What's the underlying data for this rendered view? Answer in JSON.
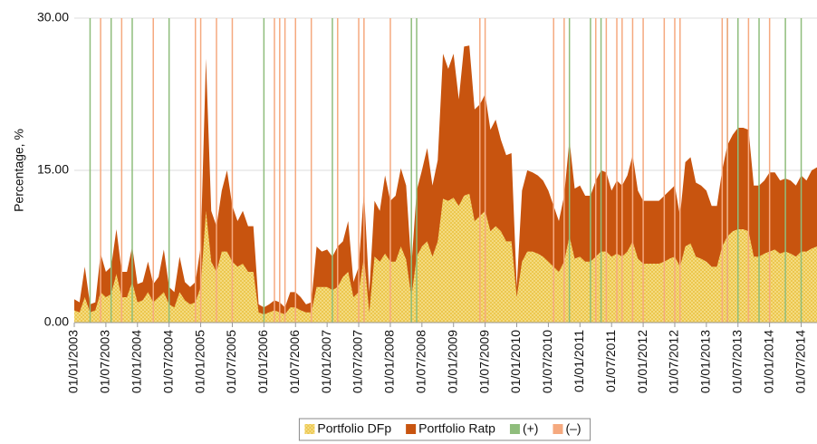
{
  "chart_data": {
    "type": "area",
    "ylabel": "Percentage, %",
    "x": [
      "01/01/2003",
      "01/02/2003",
      "01/03/2003",
      "01/04/2003",
      "01/05/2003",
      "01/06/2003",
      "01/07/2003",
      "01/08/2003",
      "01/09/2003",
      "01/10/2003",
      "01/11/2003",
      "01/12/2003",
      "01/01/2004",
      "01/02/2004",
      "01/03/2004",
      "01/04/2004",
      "01/05/2004",
      "01/06/2004",
      "01/07/2004",
      "01/08/2004",
      "01/09/2004",
      "01/10/2004",
      "01/11/2004",
      "01/12/2004",
      "01/01/2005",
      "01/02/2005",
      "01/03/2005",
      "01/04/2005",
      "01/05/2005",
      "01/06/2005",
      "01/07/2005",
      "01/08/2005",
      "01/09/2005",
      "01/10/2005",
      "01/11/2005",
      "01/12/2005",
      "01/01/2006",
      "01/02/2006",
      "01/03/2006",
      "01/04/2006",
      "01/05/2006",
      "01/06/2006",
      "01/07/2006",
      "01/08/2006",
      "01/09/2006",
      "01/10/2006",
      "01/11/2006",
      "01/12/2006",
      "01/01/2007",
      "01/02/2007",
      "01/03/2007",
      "01/04/2007",
      "01/05/2007",
      "01/06/2007",
      "01/07/2007",
      "01/08/2007",
      "01/09/2007",
      "01/10/2007",
      "01/11/2007",
      "01/12/2007",
      "01/01/2008",
      "01/02/2008",
      "01/03/2008",
      "01/04/2008",
      "01/05/2008",
      "01/06/2008",
      "01/07/2008",
      "01/08/2008",
      "01/09/2008",
      "01/10/2008",
      "01/11/2008",
      "01/12/2008",
      "01/01/2009",
      "01/02/2009",
      "01/03/2009",
      "01/04/2009",
      "01/05/2009",
      "01/06/2009",
      "01/07/2009",
      "01/08/2009",
      "01/09/2009",
      "01/10/2009",
      "01/11/2009",
      "01/12/2009",
      "01/01/2010",
      "01/02/2010",
      "01/03/2010",
      "01/04/2010",
      "01/05/2010",
      "01/06/2010",
      "01/07/2010",
      "01/08/2010",
      "01/09/2010",
      "01/10/2010",
      "01/11/2010",
      "01/12/2010",
      "01/01/2011",
      "01/02/2011",
      "01/03/2011",
      "01/04/2011",
      "01/05/2011",
      "01/06/2011",
      "01/07/2011",
      "01/08/2011",
      "01/09/2011",
      "01/10/2011",
      "01/11/2011",
      "01/12/2011",
      "01/01/2012",
      "01/02/2012",
      "01/03/2012",
      "01/04/2012",
      "01/05/2012",
      "01/06/2012",
      "01/07/2012",
      "01/08/2012",
      "01/09/2012",
      "01/10/2012",
      "01/11/2012",
      "01/12/2012",
      "01/01/2013",
      "01/02/2013",
      "01/03/2013",
      "01/04/2013",
      "01/05/2013",
      "01/06/2013",
      "01/07/2013",
      "01/08/2013",
      "01/09/2013",
      "01/10/2013",
      "01/11/2013",
      "01/12/2013",
      "01/01/2014",
      "01/02/2014",
      "01/03/2014",
      "01/04/2014",
      "01/05/2014",
      "01/06/2014",
      "01/07/2014",
      "01/08/2014",
      "01/09/2014",
      "01/10/2014"
    ],
    "series": [
      {
        "name": "Portfolio Ratp",
        "color": "#c8540f",
        "values": [
          2.3,
          2.0,
          5.5,
          1.8,
          2.0,
          6.8,
          5.0,
          5.5,
          9.2,
          5.0,
          5.0,
          7.5,
          3.8,
          4.0,
          6.0,
          3.8,
          4.5,
          7.2,
          3.5,
          3.0,
          6.5,
          4.0,
          3.5,
          4.0,
          7.5,
          26,
          11,
          9.5,
          13,
          15,
          11.5,
          10,
          11,
          9.5,
          9.5,
          1.8,
          1.5,
          1.8,
          2.2,
          2.0,
          1.5,
          3.0,
          3.0,
          2.5,
          1.8,
          2.0,
          7.5,
          7.0,
          7.2,
          6.5,
          7.5,
          8.0,
          10,
          4.0,
          5.5,
          13,
          3.0,
          12,
          11,
          14.5,
          12,
          12.5,
          15.2,
          13.5,
          5.5,
          13,
          15,
          17.2,
          13.5,
          16,
          26.5,
          25,
          26.5,
          22,
          27.2,
          27.3,
          21,
          21.5,
          22.5,
          19,
          20,
          18,
          16.5,
          16.7,
          3.5,
          13,
          15,
          14.8,
          14.5,
          14,
          13,
          11.5,
          10,
          12.5,
          18,
          13.2,
          13.5,
          12.5,
          12.5,
          14,
          15,
          14.8,
          13,
          14,
          13.5,
          14.5,
          16.5,
          13,
          12,
          12,
          12,
          12,
          12.5,
          13,
          13.5,
          10.5,
          15.8,
          16.3,
          13.8,
          13.5,
          13,
          11.5,
          11.5,
          15,
          17.5,
          18.5,
          19.2,
          19.2,
          19,
          13.5,
          13.5,
          14,
          14.8,
          14.8,
          14,
          14.2,
          14,
          13.5,
          14.5,
          14,
          15,
          15.3
        ]
      },
      {
        "name": "Portfolio DFp",
        "color": "#f3d36a",
        "values": [
          1.2,
          1.0,
          2.5,
          1.0,
          1.2,
          3.0,
          2.5,
          2.8,
          4.8,
          2.5,
          2.5,
          4.0,
          2.0,
          2.2,
          3.0,
          2.0,
          2.5,
          3.0,
          1.8,
          1.5,
          3.0,
          2.2,
          1.8,
          2.0,
          3.5,
          11,
          6,
          5,
          7,
          7,
          6,
          5.5,
          5.8,
          5,
          5,
          1.0,
          0.8,
          1.0,
          1.2,
          1.0,
          0.8,
          1.5,
          1.5,
          1.2,
          1.0,
          1.0,
          3.5,
          3.5,
          3.5,
          3.2,
          3.5,
          4.5,
          5,
          2.5,
          3,
          6.5,
          1,
          6.5,
          6,
          6.8,
          6,
          6,
          7.5,
          6.2,
          2.5,
          6.5,
          7.5,
          8,
          6.5,
          8,
          12.2,
          12,
          12.3,
          11.5,
          12.5,
          12.7,
          10,
          10.5,
          11,
          9,
          9.5,
          9,
          8,
          8,
          2.5,
          6,
          7,
          7,
          6.8,
          6.5,
          6,
          5.5,
          5,
          6,
          8.5,
          6.3,
          6.5,
          6,
          6,
          6.5,
          7,
          7,
          6.5,
          6.8,
          6.5,
          7,
          8,
          6.3,
          5.8,
          5.8,
          5.8,
          5.8,
          6,
          6.3,
          6.5,
          5.5,
          7.5,
          7.8,
          6.5,
          6.3,
          6,
          5.5,
          5.5,
          7.5,
          8.5,
          9,
          9.2,
          9.2,
          9,
          6.5,
          6.5,
          6.8,
          7,
          7.2,
          6.8,
          7,
          6.8,
          6.5,
          7,
          7,
          7.3,
          7.5
        ]
      }
    ],
    "events": [
      {
        "name": "(+)",
        "color": "#8fbd7c",
        "x": [
          "01/04/2003",
          "01/08/2003",
          "01/12/2003",
          "01/07/2004",
          "01/01/2006",
          "01/02/2007",
          "01/05/2008",
          "01/06/2008",
          "01/11/2010",
          "01/03/2011",
          "01/05/2011",
          "01/05/2013",
          "01/07/2013",
          "01/11/2013",
          "01/04/2014",
          "01/07/2014"
        ]
      },
      {
        "name": "(–)",
        "color": "#f5a97f",
        "x": [
          "01/06/2003",
          "01/10/2003",
          "01/04/2004",
          "01/12/2004",
          "01/01/2005",
          "01/04/2005",
          "01/07/2005",
          "01/03/2006",
          "01/04/2006",
          "01/05/2006",
          "01/07/2006",
          "01/10/2006",
          "01/03/2007",
          "01/07/2007",
          "01/08/2007",
          "01/01/2008",
          "01/06/2009",
          "01/07/2009",
          "01/08/2010",
          "01/10/2010",
          "01/04/2011",
          "01/06/2011",
          "01/08/2011",
          "01/09/2011",
          "01/11/2011",
          "01/01/2012",
          "01/05/2012",
          "01/07/2012",
          "01/08/2012",
          "01/04/2013",
          "01/05/2013",
          "01/09/2013",
          "01/01/2014"
        ]
      }
    ],
    "xlim": [
      "01/01/2003",
      "01/10/2014"
    ],
    "xticks": [
      "01/01/2003",
      "01/07/2003",
      "01/01/2004",
      "01/07/2004",
      "01/01/2005",
      "01/07/2005",
      "01/01/2006",
      "01/07/2006",
      "01/01/2007",
      "01/07/2007",
      "01/01/2008",
      "01/07/2008",
      "01/01/2009",
      "01/07/2009",
      "01/01/2010",
      "01/07/2010",
      "01/01/2011",
      "01/07/2011",
      "01/01/2012",
      "01/07/2012",
      "01/01/2013",
      "01/07/2013",
      "01/01/2014",
      "01/07/2014"
    ],
    "ylim": [
      0,
      30
    ],
    "yticks": [
      {
        "value": 0,
        "label": "0.00"
      },
      {
        "value": 15,
        "label": "15.00"
      },
      {
        "value": 30,
        "label": "30.00"
      }
    ],
    "grid": true,
    "legend": "bottom"
  }
}
